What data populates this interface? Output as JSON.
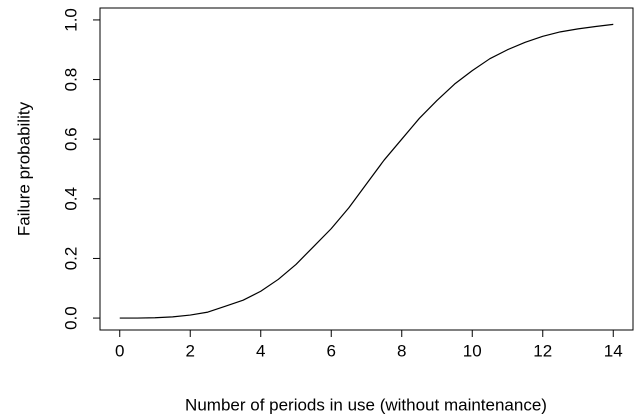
{
  "chart_data": {
    "type": "line",
    "xlabel": "Number of periods in use (without maintenance)",
    "ylabel": "Failure probability",
    "x": [
      0,
      0.5,
      1,
      1.5,
      2,
      2.5,
      3,
      3.5,
      4,
      4.5,
      5,
      5.5,
      6,
      6.5,
      7,
      7.5,
      8,
      8.5,
      9,
      9.5,
      10,
      10.5,
      11,
      11.5,
      12,
      12.5,
      13,
      13.5,
      14
    ],
    "series": [
      {
        "color": "#000000",
        "values": [
          0,
          0,
          0.001,
          0.004,
          0.01,
          0.02,
          0.04,
          0.06,
          0.09,
          0.13,
          0.18,
          0.24,
          0.3,
          0.37,
          0.45,
          0.53,
          0.6,
          0.67,
          0.73,
          0.785,
          0.83,
          0.87,
          0.9,
          0.925,
          0.945,
          0.96,
          0.97,
          0.978,
          0.985
        ]
      }
    ],
    "xlim": [
      -0.56,
      14.56
    ],
    "xticks": [
      0,
      2,
      4,
      6,
      8,
      10,
      12,
      14
    ],
    "ylim": [
      -0.04,
      1.04
    ],
    "yticks": [
      {
        "value": 0,
        "label": "0.0"
      },
      {
        "value": 0.2,
        "label": "0.2"
      },
      {
        "value": 0.4,
        "label": "0.4"
      },
      {
        "value": 0.6,
        "label": "0.6"
      },
      {
        "value": 0.8,
        "label": "0.8"
      },
      {
        "value": 1,
        "label": "1.0"
      }
    ],
    "grid": false
  }
}
